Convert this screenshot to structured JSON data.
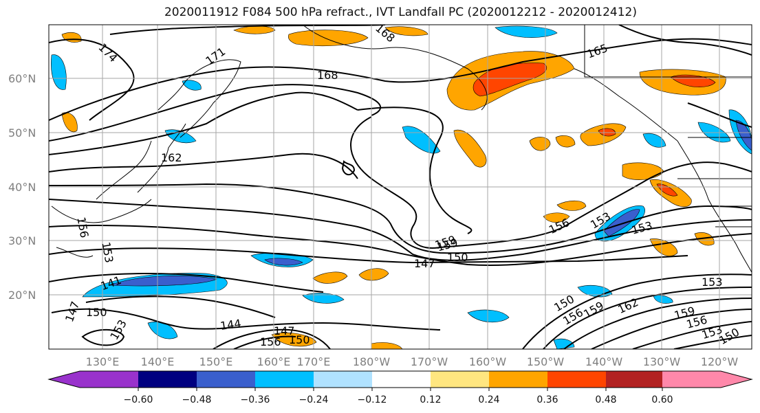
{
  "title": "2020011912 F084 500 hPa refract., IVT Landfall PC (2020012212 - 2020012412)",
  "map": {
    "lat_labels": [
      "60°N",
      "50°N",
      "40°N",
      "30°N",
      "20°N"
    ],
    "lon_labels": [
      "130°E",
      "140°E",
      "150°E",
      "160°E",
      "170°E",
      "180°W",
      "170°W",
      "160°W",
      "150°W",
      "140°W",
      "130°W",
      "120°W"
    ],
    "contour_labels": [
      "174",
      "171",
      "168",
      "165",
      "168",
      "162",
      "159",
      "156",
      "153",
      "141",
      "147",
      "150",
      "144",
      "147",
      "156",
      "150",
      "153",
      "159",
      "147",
      "150",
      "156",
      "153",
      "153",
      "153",
      "150",
      "156",
      "159",
      "162",
      "159",
      "156",
      "153",
      "150"
    ]
  },
  "colorbar": {
    "tick_labels": [
      "−0.60",
      "−0.48",
      "−0.36",
      "−0.24",
      "−0.12",
      "0.12",
      "0.24",
      "0.36",
      "0.48",
      "0.60"
    ],
    "colors": [
      "#9932cc",
      "#000080",
      "#3a5fcd",
      "#00bfff",
      "#b0e2ff",
      "#ffffff",
      "#ffe680",
      "#ffa500",
      "#ff4500",
      "#b22222",
      "#ff88aa"
    ]
  }
}
